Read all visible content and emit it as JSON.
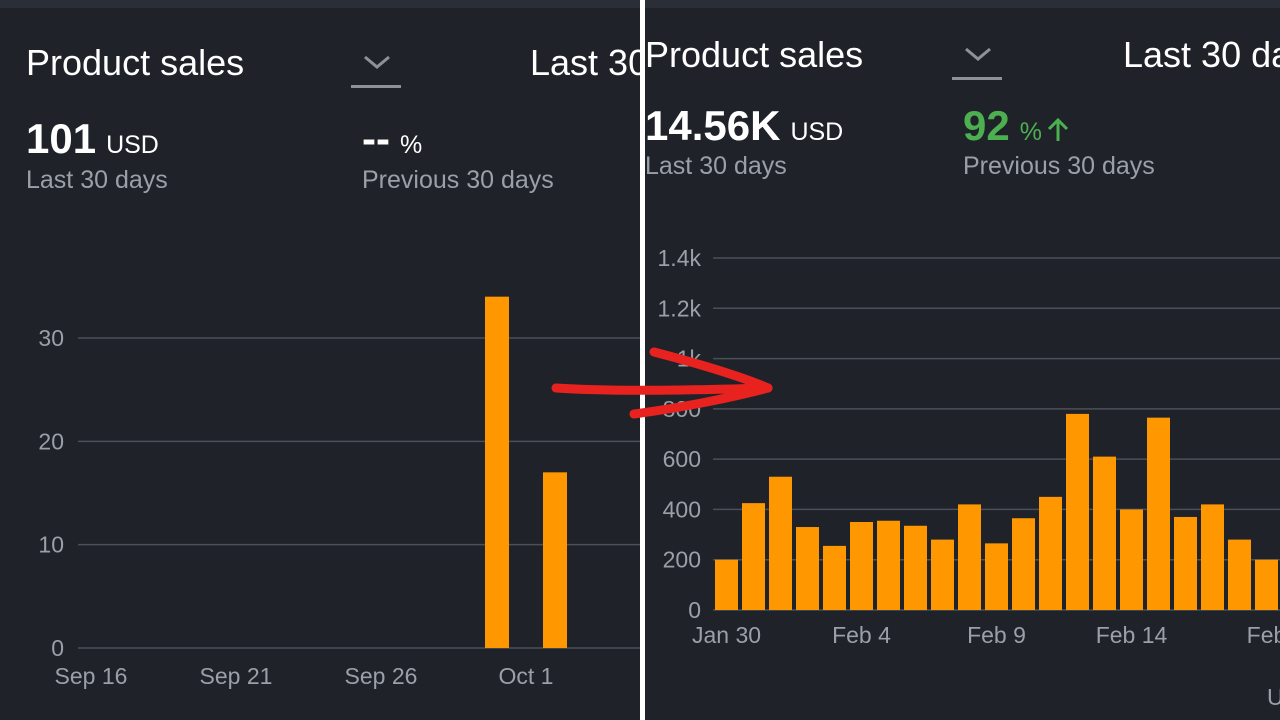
{
  "left": {
    "title": "Product sales",
    "range_label": "Last 30",
    "metric_value": "101",
    "metric_unit": "USD",
    "metric_label": "Last 30 days",
    "change_value": "--",
    "change_unit": "%",
    "change_label": "Previous 30 days"
  },
  "right": {
    "title": "Product sales",
    "range_label": "Last 30 da",
    "metric_value": "14.56K",
    "metric_unit": "USD",
    "metric_label": "Last 30 days",
    "change_value": "92",
    "change_unit": "%",
    "change_label": "Previous 30 days",
    "corner_text": "U"
  },
  "colors": {
    "background": "#1f2229",
    "bar": "#ff9800",
    "grid": "#4a4f58",
    "positive": "#4caf50",
    "arrow": "#e8231f",
    "divider": "#ffffff"
  },
  "icons": {
    "dropdown": "chevron-down-icon",
    "change_direction": "arrow-up-icon",
    "annotation": "red-arrow-annotation"
  },
  "chart_data": [
    {
      "type": "bar",
      "title": "",
      "xlabel": "",
      "ylabel": "",
      "ylim": [
        0,
        36
      ],
      "yticks": [
        "0",
        "10",
        "20",
        "30"
      ],
      "ytick_values": [
        0,
        10,
        20,
        30
      ],
      "x_tick_labels": [
        "Sep 16",
        "Sep 21",
        "Sep 26",
        "Oct 1"
      ],
      "x_tick_indices": [
        0,
        5,
        10,
        15
      ],
      "values": [
        0,
        0,
        0,
        0,
        0,
        0,
        0,
        0,
        0,
        0,
        0,
        0,
        0,
        0,
        34,
        0,
        17
      ],
      "grid": true,
      "legend": "none"
    },
    {
      "type": "bar",
      "title": "",
      "xlabel": "",
      "ylabel": "",
      "ylim": [
        0,
        1400
      ],
      "yticks": [
        "0",
        "200",
        "400",
        "600",
        "800",
        "1k",
        "1.2k",
        "1.4k"
      ],
      "ytick_values": [
        0,
        200,
        400,
        600,
        800,
        1000,
        1200,
        1400
      ],
      "x_tick_labels": [
        "Jan 30",
        "Feb 4",
        "Feb 9",
        "Feb 14",
        "Feb"
      ],
      "x_tick_indices": [
        0,
        5,
        10,
        15,
        20
      ],
      "values": [
        200,
        425,
        530,
        330,
        255,
        350,
        355,
        335,
        280,
        420,
        265,
        365,
        450,
        780,
        610,
        400,
        765,
        370,
        420,
        280,
        200
      ],
      "grid": true,
      "legend": "none"
    }
  ]
}
